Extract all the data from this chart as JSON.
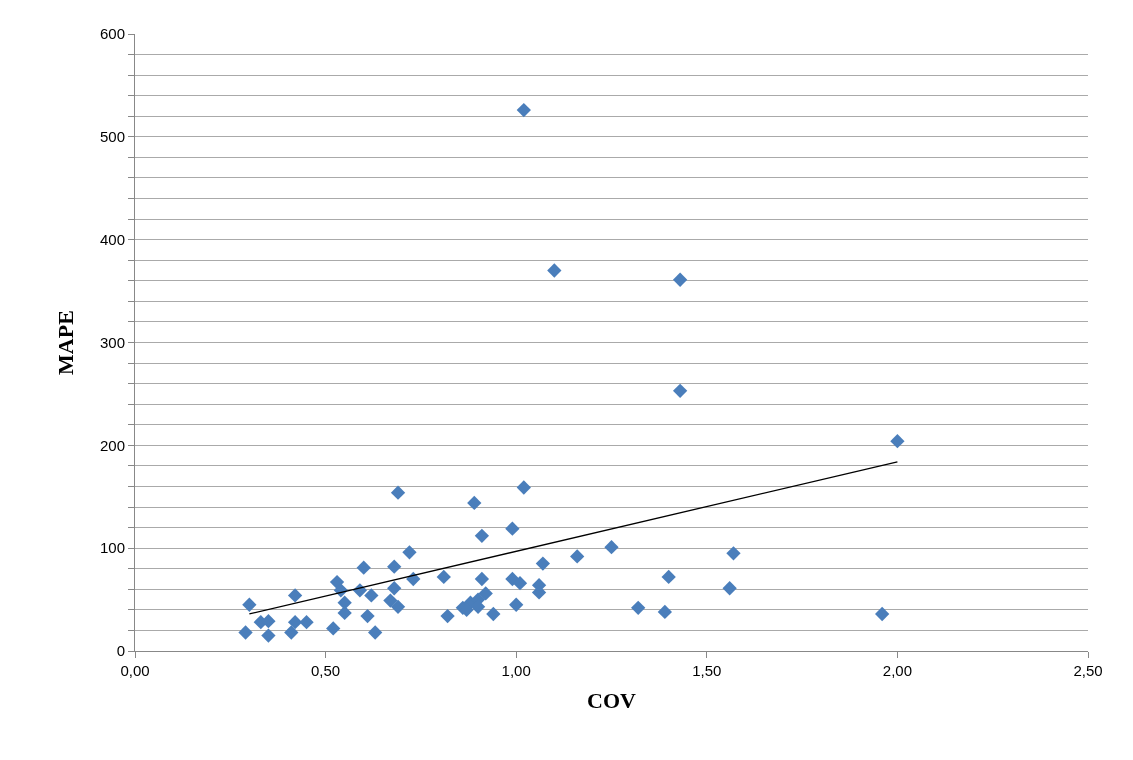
{
  "chart_data": {
    "type": "scatter",
    "xlabel": "COV",
    "ylabel": "MAPE",
    "xlim": [
      0,
      2.5
    ],
    "xticks": [
      {
        "value": 0,
        "label": "0,00"
      },
      {
        "value": 0.5,
        "label": "0,50"
      },
      {
        "value": 1,
        "label": "1,00"
      },
      {
        "value": 1.5,
        "label": "1,50"
      },
      {
        "value": 2,
        "label": "2,00"
      },
      {
        "value": 2.5,
        "label": "2,50"
      }
    ],
    "ylim": [
      0,
      600
    ],
    "yticks": [
      0,
      {
        "value": 20,
        "label": null
      },
      {
        "value": 40,
        "label": null
      },
      {
        "value": 60,
        "label": null
      },
      {
        "value": 80,
        "label": null
      },
      100,
      {
        "value": 120,
        "label": null
      },
      {
        "value": 140,
        "label": null
      },
      {
        "value": 160,
        "label": null
      },
      {
        "value": 180,
        "label": null
      },
      200,
      {
        "value": 220,
        "label": null
      },
      {
        "value": 240,
        "label": null
      },
      {
        "value": 260,
        "label": null
      },
      {
        "value": 280,
        "label": null
      },
      300,
      {
        "value": 320,
        "label": null
      },
      {
        "value": 340,
        "label": null
      },
      {
        "value": 360,
        "label": null
      },
      {
        "value": 380,
        "label": null
      },
      400,
      {
        "value": 420,
        "label": null
      },
      {
        "value": 440,
        "label": null
      },
      {
        "value": 460,
        "label": null
      },
      {
        "value": 480,
        "label": null
      },
      500,
      {
        "value": 520,
        "label": null
      },
      {
        "value": 540,
        "label": null
      },
      {
        "value": 560,
        "label": null
      },
      {
        "value": 580,
        "label": null
      },
      600
    ],
    "grid": "y",
    "series": [
      {
        "marker": "diamond",
        "color": "#4a7ebb",
        "x": [
          0.29,
          0.3,
          0.33,
          0.35,
          0.35,
          0.41,
          0.42,
          0.42,
          0.45,
          0.52,
          0.53,
          0.54,
          0.55,
          0.55,
          0.6,
          0.59,
          0.62,
          0.61,
          0.63,
          0.68,
          0.68,
          0.67,
          0.69,
          0.69,
          0.72,
          0.73,
          0.81,
          0.82,
          0.89,
          0.91,
          0.91,
          0.92,
          0.86,
          0.88,
          0.9,
          0.9,
          0.87,
          0.94,
          0.99,
          1.02,
          0.99,
          1.01,
          1.0,
          1.07,
          1.06,
          1.06,
          1.16,
          1.25,
          1.4,
          1.32,
          1.39,
          1.57,
          1.56,
          1.96,
          2.0,
          1.02,
          1.1,
          1.43,
          1.43
        ],
        "values": [
          18,
          45,
          28,
          29,
          15,
          18,
          54,
          28,
          28,
          22,
          67,
          59,
          47,
          37,
          81,
          59,
          54,
          34,
          18,
          82,
          61,
          49,
          43,
          154,
          96,
          70,
          72,
          34,
          144,
          112,
          70,
          56,
          42,
          47,
          50,
          43,
          40,
          36,
          119,
          159,
          70,
          66,
          45,
          85,
          64,
          57,
          92,
          101,
          72,
          42,
          38,
          95,
          61,
          36,
          204,
          526,
          370,
          361,
          253
        ]
      },
      {
        "type": "line",
        "marker": "none",
        "color": "#000000",
        "line_style": "solid",
        "x": [
          0.3,
          2.0
        ],
        "values": [
          36,
          184
        ]
      }
    ]
  }
}
